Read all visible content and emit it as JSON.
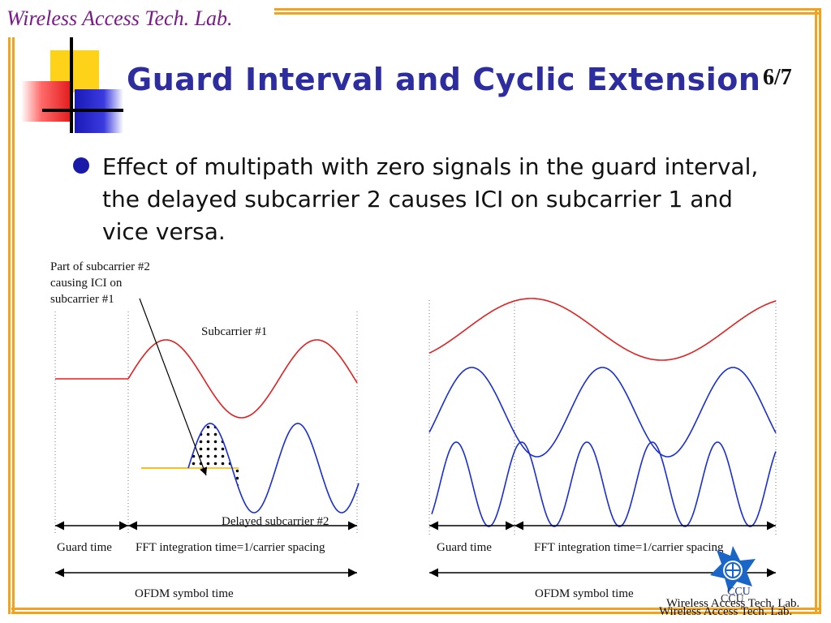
{
  "header": {
    "lab_name": "Wireless Access Tech. Lab.",
    "title": "Guard Interval and Cyclic Extension",
    "page_number": "6/7"
  },
  "bullet": {
    "text": "Effect of multipath with zero signals in the guard interval, the delayed subcarrier 2 causes ICI on subcarrier 1 and vice versa."
  },
  "left_diagram": {
    "annotation": "Part of subcarrier #2 causing ICI on subcarrier #1",
    "subcarrier1_label": "Subcarrier #1",
    "delayed_label": "Delayed subcarrier #2",
    "guard_time_label": "Guard time",
    "fft_label": "FFT integration time=1/carrier spacing",
    "symbol_label": "OFDM symbol  time"
  },
  "right_diagram": {
    "guard_time_label": "Guard time",
    "fft_label": "FFT integration time=1/carrier spacing",
    "symbol_label": "OFDM symbol  time"
  },
  "footer": {
    "logo_text": "CCU",
    "logo_text_shadow": "CCU",
    "lab_name": "Wireless Access Tech. Lab.",
    "lab_name_shadow": "Wireless Access Tech. Lab."
  },
  "colors": {
    "frame": "#f4a21d",
    "title": "#2d2d9f",
    "lab_name": "#7a1a8a",
    "subcarrier1": "#e02020",
    "subcarrier2": "#1a2ed0",
    "guard_line": "#f2b800",
    "logo": "#1a66c8"
  }
}
